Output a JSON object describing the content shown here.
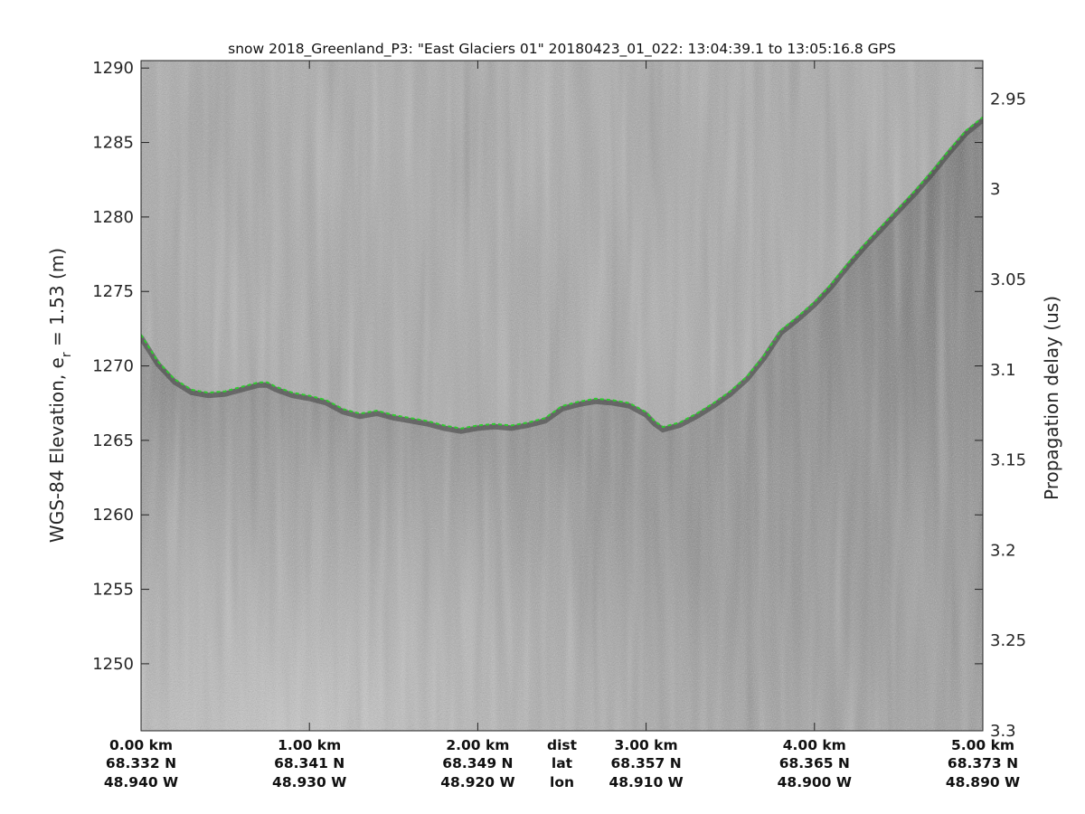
{
  "chart_data": {
    "type": "line",
    "title": "snow 2018_Greenland_P3: \"East Glaciers 01\"  20180423_01_022: 13:04:39.1 to 13:05:16.8 GPS",
    "ylabel_main": "WGS-84 Elevation, e",
    "ylabel_sub": "r",
    "ylabel_tail": " = 1.53 (m)",
    "y2label": "Propagation delay (us)",
    "ylim": [
      1245.5,
      1290.5
    ],
    "yticks": [
      "1290",
      "1285",
      "1280",
      "1275",
      "1270",
      "1265",
      "1260",
      "1255",
      "1250"
    ],
    "y2lim": [
      2.9288,
      3.3
    ],
    "y2ticks": [
      "2.95",
      "3",
      "3.05",
      "3.1",
      "3.15",
      "3.2",
      "3.25",
      "3.3"
    ],
    "xlim": [
      0,
      5
    ],
    "x_rows": {
      "dist": [
        "0.00 km",
        "1.00 km",
        "2.00 km",
        "3.00 km",
        "4.00 km",
        "5.00 km"
      ],
      "lat": [
        "68.332 N",
        "68.341 N",
        "68.349 N",
        "68.357 N",
        "68.365 N",
        "68.373 N"
      ],
      "lon": [
        "48.940 W",
        "48.930 W",
        "48.920 W",
        "48.910 W",
        "48.900 W",
        "48.890 W"
      ],
      "row_labels": [
        "dist",
        "lat",
        "lon"
      ]
    },
    "series": [
      {
        "color": "#2ecc2e",
        "x": [
          0.0,
          0.1,
          0.2,
          0.3,
          0.4,
          0.5,
          0.6,
          0.7,
          0.75,
          0.8,
          0.9,
          1.0,
          1.1,
          1.2,
          1.3,
          1.4,
          1.5,
          1.6,
          1.7,
          1.8,
          1.9,
          2.0,
          2.1,
          2.2,
          2.3,
          2.4,
          2.5,
          2.6,
          2.7,
          2.8,
          2.9,
          3.0,
          3.05,
          3.1,
          3.2,
          3.3,
          3.4,
          3.5,
          3.6,
          3.7,
          3.8,
          3.9,
          4.0,
          4.1,
          4.2,
          4.3,
          4.4,
          4.5,
          4.6,
          4.7,
          4.8,
          4.9,
          5.0
        ],
        "y": [
          1272.1,
          1270.3,
          1269.1,
          1268.4,
          1268.2,
          1268.3,
          1268.6,
          1268.9,
          1268.9,
          1268.6,
          1268.2,
          1268.0,
          1267.7,
          1267.1,
          1266.8,
          1267.0,
          1266.7,
          1266.5,
          1266.3,
          1266.0,
          1265.8,
          1266.0,
          1266.1,
          1266.0,
          1266.2,
          1266.5,
          1267.3,
          1267.6,
          1267.8,
          1267.7,
          1267.5,
          1266.9,
          1266.3,
          1265.9,
          1266.2,
          1266.8,
          1267.5,
          1268.3,
          1269.3,
          1270.7,
          1272.4,
          1273.3,
          1274.3,
          1275.5,
          1276.9,
          1278.2,
          1279.4,
          1280.6,
          1281.8,
          1283.1,
          1284.5,
          1285.8,
          1286.7
        ]
      }
    ],
    "grid": false,
    "legend": "none",
    "image_background": "grayscale radar echogram"
  }
}
